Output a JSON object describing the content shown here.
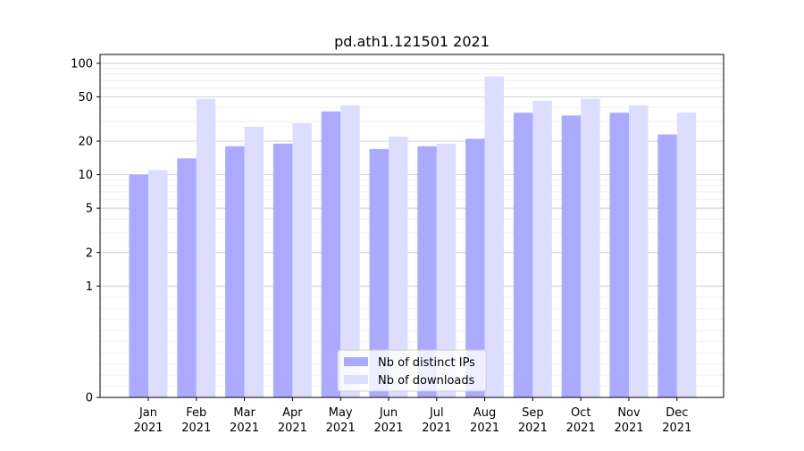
{
  "chart_data": {
    "type": "bar",
    "title": "pd.ath1.121501 2021",
    "xlabel": "",
    "ylabel": "",
    "yscale": "symlog",
    "ylim": [
      0,
      120
    ],
    "yticks": [
      0,
      1,
      2,
      5,
      10,
      20,
      50,
      100
    ],
    "ytick_labels": [
      "0",
      "1",
      "2",
      "5",
      "10",
      "20",
      "50",
      "100"
    ],
    "categories": [
      "Jan\n2021",
      "Feb\n2021",
      "Mar\n2021",
      "Apr\n2021",
      "May\n2021",
      "Jun\n2021",
      "Jul\n2021",
      "Aug\n2021",
      "Sep\n2021",
      "Oct\n2021",
      "Nov\n2021",
      "Dec\n2021"
    ],
    "category_months": [
      "Jan",
      "Feb",
      "Mar",
      "Apr",
      "May",
      "Jun",
      "Jul",
      "Aug",
      "Sep",
      "Oct",
      "Nov",
      "Dec"
    ],
    "category_years": [
      "2021",
      "2021",
      "2021",
      "2021",
      "2021",
      "2021",
      "2021",
      "2021",
      "2021",
      "2021",
      "2021",
      "2021"
    ],
    "series": [
      {
        "name": "Nb of distinct IPs",
        "color": "#aaaaff",
        "values": [
          10,
          14,
          18,
          19,
          37,
          17,
          18,
          21,
          36,
          34,
          36,
          23
        ]
      },
      {
        "name": "Nb of downloads",
        "color": "#ddddff",
        "values": [
          11,
          48,
          27,
          29,
          42,
          22,
          19,
          76,
          46,
          48,
          42,
          36
        ]
      }
    ],
    "grid": true,
    "legend_position": "lower-center"
  }
}
